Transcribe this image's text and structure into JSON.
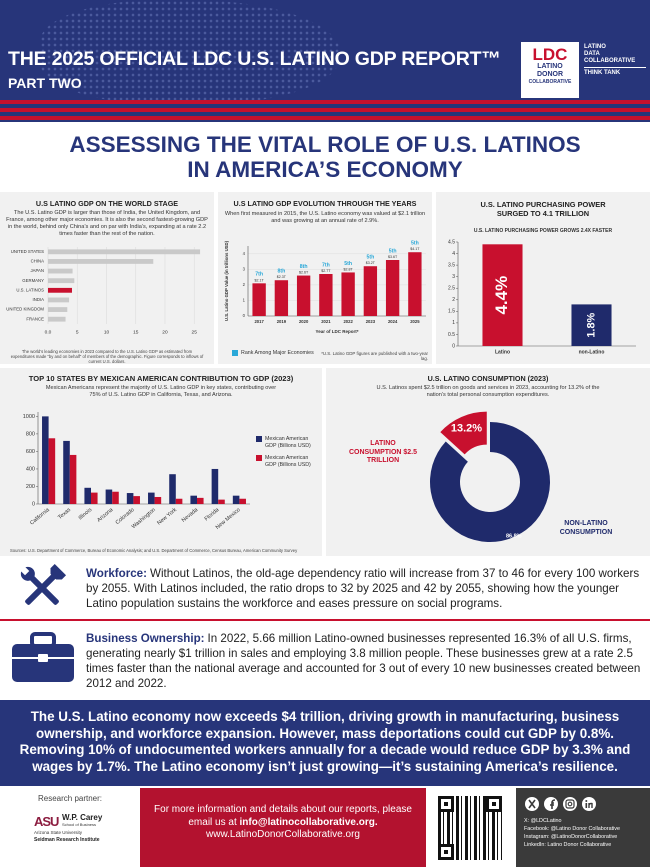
{
  "header": {
    "title": "THE 2025 OFFICIAL LDC U.S. LATINO GDP REPORT™",
    "subtitle": "PART TWO",
    "logo": {
      "mark": "LDC",
      "lines": [
        "LATINO",
        "DONOR",
        "COLLABORATIVE"
      ]
    },
    "tank": {
      "lines": [
        "LATINO",
        "DATA",
        "COLLABORATIVE"
      ],
      "tag": "THINK TANK"
    }
  },
  "headline": [
    "ASSESSING THE VITAL ROLE OF U.S. LATINOS",
    "IN AMERICA’S ECONOMY"
  ],
  "chart_data": [
    {
      "type": "barh",
      "title": "U.S LATINO GDP ON THE WORLD STAGE",
      "subtitle": "The U.S. Latino GDP is larger than those of India, the United Kingdom, and France, among other major economies. It is also the second fastest-growing GDP in the world, behind only China’s and on par with India’s, expanding at a rate 2.2 times faster than the rest of the nation.",
      "categories": [
        "UNITED STATES",
        "CHINA",
        "JAPAN",
        "GERMANY",
        "U.S. LATINOS",
        "INDIA",
        "UNITED KINGDOM",
        "FRANCE"
      ],
      "values": [
        26,
        18,
        4.2,
        4.5,
        4.1,
        3.6,
        3.3,
        3
      ],
      "colors": [
        "#c9c9c9",
        "#c9c9c9",
        "#c9c9c9",
        "#c9c9c9",
        "#c8102e",
        "#c9c9c9",
        "#c9c9c9",
        "#c9c9c9"
      ],
      "xlim": [
        0,
        26.5
      ],
      "xticks": [
        {
          "value": 0,
          "label": "0.0"
        },
        5,
        10,
        15,
        20,
        25
      ],
      "grid": true,
      "note": "The world’s leading economies in 2023 compared to the U.S. Latino GDP as estimated from expenditures made “by and on behalf” of members of the demographic. Figure corresponds to inflows of current U.S. dollars."
    },
    {
      "type": "bar",
      "title": "U.S LATINO GDP EVOLUTION THROUGH THE YEARS",
      "subtitle": "When first measured in 2015, the U.S. Latino economy was valued at $2.1 trillion and was growing at an annual rate of 2.9%.",
      "categories": [
        "2017",
        "2019",
        "2020",
        "2021",
        "2022",
        "2023",
        "2024",
        "2025"
      ],
      "values": [
        2.1,
        2.3,
        2.6,
        2.7,
        2.8,
        3.2,
        3.6,
        4.1
      ],
      "value_labels": [
        "$2.1T",
        "$2.3T",
        "$2.6T",
        "$2.7T",
        "$2.8T",
        "$3.2T",
        "$3.6T",
        "$4.1T"
      ],
      "value_label_position": "above",
      "ranks": [
        "7th",
        "8th",
        "8th",
        "7th",
        "5th",
        "5th",
        "5th",
        "5th"
      ],
      "rank_color": "#2aa8d8",
      "color": "#c8102e",
      "ylabel": "U.S. Latino GDP Value (in trillions USD)",
      "xlabel": "Year of LDC Report*",
      "ylim": [
        0,
        4.5
      ],
      "yticks": [
        0,
        1,
        2,
        3,
        4
      ],
      "grid": true,
      "legend": "Rank Among Major Economies",
      "note": "*U.S. Latino GDP figures are published with a two-year lag."
    },
    {
      "type": "bar",
      "title": "U.S. LATINO PURCHASING POWER SURGED TO 4.1 TRILLION",
      "subtitle": "U.S. LATINO PURCHASING POWER GROWS 2.4X FASTER",
      "categories": [
        "Latino",
        "non-Latino"
      ],
      "values": [
        4.4,
        1.8
      ],
      "value_labels": [
        "4.4%",
        "1.8%"
      ],
      "value_label_position": "inside",
      "colors": [
        "#c8102e",
        "#1f2a6b"
      ],
      "ylim": [
        0,
        4.5
      ],
      "yticks": [
        0,
        0.5,
        1,
        1.5,
        2,
        2.5,
        3,
        3.5,
        4,
        4.5
      ],
      "grid": false
    },
    {
      "type": "bar",
      "title": "TOP 10 STATES BY MEXICAN AMERICAN CONTRIBUTION TO GDP (2023)",
      "subtitle": "Mexican Americans represent the majority of U.S. Latino GDP in key states, contributing over 75% of U.S. Latino GDP in California, Texas, and Arizona.",
      "categories": [
        "California",
        "Texas",
        "Illinois",
        "Arizona",
        "Colorado",
        "Washington",
        "New York",
        "Nevada",
        "Florida",
        "New Mexico"
      ],
      "series": [
        {
          "name": "Mexican American GDP (Billions USD)",
          "color": "#1f2a6b",
          "values": [
            1000,
            720,
            185,
            165,
            125,
            130,
            340,
            95,
            400,
            95
          ]
        },
        {
          "name": "Mexican American GDP (Billions USD)",
          "color": "#c8102e",
          "values": [
            750,
            560,
            130,
            140,
            90,
            80,
            60,
            70,
            50,
            60
          ]
        }
      ],
      "ylim": [
        0,
        1050
      ],
      "yticks": [
        0,
        200,
        400,
        600,
        800,
        1000
      ],
      "grid": false,
      "note": "Sources: U.S. Department of Commerce, Bureau of Economic Analysis; and U.S. Department of Commerce, Census Bureau, American Community Survey"
    },
    {
      "type": "donut",
      "title": "U.S. LATINO CONSUMPTION (2023)",
      "subtitle": "U.S. Latinos spent $2.5 trillion on goods and services in 2023, accounting for 13.2% of the nation’s total personal consumption expenditures.",
      "categories": [
        "LATINO CONSUMPTION $2.5 TRILLION",
        "NON-LATINO CONSUMPTION"
      ],
      "values": [
        13.2,
        86.8
      ],
      "value_labels": [
        "13.2%",
        "86.8%"
      ],
      "colors": [
        "#c8102e",
        "#1f2a6b"
      ],
      "label_colors": [
        "#c8102e",
        "#1f2a6b"
      ]
    }
  ],
  "facts": [
    {
      "label": "Workforce:",
      "text": "Without Latinos, the old-age dependency ratio will increase from 37 to 46 for every 100 workers by 2055. With Latinos included, the ratio drops to 32 by 2025 and 42 by 2055, showing how the younger Latino population sustains the workforce and eases pressure on social programs."
    },
    {
      "label": "Business Ownership:",
      "text": "In 2022, 5.66 million Latino-owned businesses represented 16.3% of all U.S. firms, generating nearly $1 trillion in sales and employing 3.8 million people. These businesses grew at a rate 2.5 times faster than the national average and accounted for 3 out of every 10 new businesses created between 2012 and 2022."
    }
  ],
  "banner": "The U.S. Latino economy now exceeds $4 trillion, driving growth in manufacturing, business ownership, and workforce expansion. However, mass deportations could cut GDP by 0.8%. Removing 10% of undocumented workers annually for a decade would reduce GDP by 3.3% and wages by 1.7%. The Latino economy isn’t just growing—it’s sustaining America’s resilience.",
  "footer": {
    "partner": {
      "label": "Research partner:",
      "mark": "ASU",
      "name": "W.P. Carey",
      "school": "School of Business",
      "university": "Arizona State University",
      "institute": "Seidman Research Institute"
    },
    "contact": {
      "text": "For more information and details about our reports, please email us at",
      "email": "info@latinocollaborative.org.",
      "url": "www.LatinoDonorCollaborative.org"
    },
    "social": [
      "X: @LDCLatino",
      "Facebook: @Latino Donor Collaborative",
      "Instagram: @LatinoDonorCollaborative",
      "LinkedIn: Latino Donor Collaborative"
    ]
  }
}
